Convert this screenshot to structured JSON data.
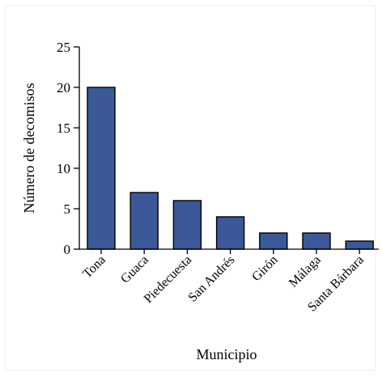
{
  "chart_data": {
    "type": "bar",
    "categories": [
      "Tona",
      "Guaca",
      "Piedecuesta",
      "San Andrés",
      "Girón",
      "Málaga",
      "Santa Bárbara"
    ],
    "values": [
      20,
      7,
      6,
      4,
      2,
      2,
      1
    ],
    "xlabel": "Municipio",
    "ylabel": "Número de decomisos",
    "ylim": [
      0,
      25
    ],
    "yticks": [
      0,
      5,
      10,
      15,
      20,
      25
    ],
    "bar_color": "#3b5998",
    "grid": false,
    "legend": "none"
  }
}
